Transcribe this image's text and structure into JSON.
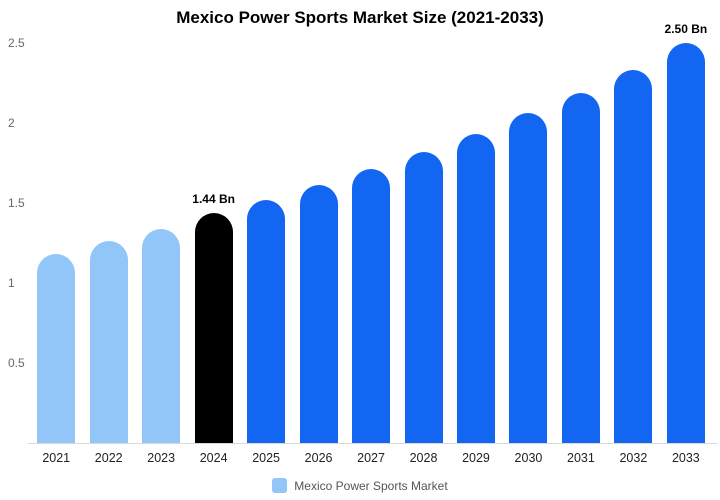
{
  "chart": {
    "title": "Mexico Power Sports Market Size (2021-2033)"
  },
  "legend": {
    "label": "Mexico Power Sports Market",
    "swatch_color": "#93c6f8"
  },
  "colors": {
    "light_blue": "#93c6f8",
    "black": "#000000",
    "blue": "#1266f1",
    "axis_text": "#666666",
    "x_label_text": "#222222",
    "baseline": "#d9d9d9"
  },
  "y_axis": {
    "max": 2.5,
    "ticks": [
      {
        "label": "0.5",
        "value": 0.5
      },
      {
        "label": "1",
        "value": 1
      },
      {
        "label": "1.5",
        "value": 1.5
      },
      {
        "label": "2",
        "value": 2
      },
      {
        "label": "2.5",
        "value": 2.5
      }
    ]
  },
  "chart_data": {
    "type": "bar",
    "title": "Mexico Power Sports Market Size (2021-2033)",
    "series_name": "Mexico Power Sports Market",
    "unit": "Bn",
    "categories": [
      "2021",
      "2022",
      "2023",
      "2024",
      "2025",
      "2026",
      "2027",
      "2028",
      "2029",
      "2030",
      "2031",
      "2032",
      "2033"
    ],
    "values": [
      1.18,
      1.26,
      1.34,
      1.44,
      1.52,
      1.61,
      1.71,
      1.82,
      1.93,
      2.06,
      2.19,
      2.33,
      2.5
    ],
    "bar_color_roles": [
      "light_blue",
      "light_blue",
      "light_blue",
      "black",
      "blue",
      "blue",
      "blue",
      "blue",
      "blue",
      "blue",
      "blue",
      "blue",
      "blue"
    ],
    "annotations": [
      {
        "category": "2024",
        "text": "1.44 Bn"
      },
      {
        "category": "2033",
        "text": "2.50 Bn"
      }
    ],
    "ylim": [
      0,
      2.5
    ],
    "grid": false,
    "legend_position": "bottom"
  }
}
